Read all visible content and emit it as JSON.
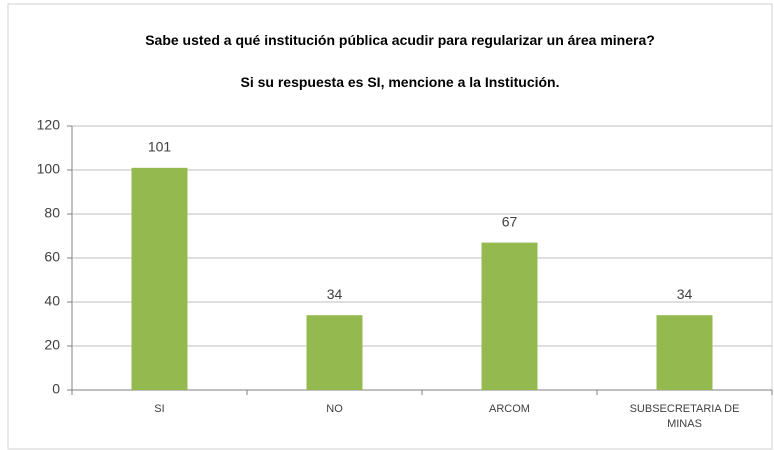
{
  "chart_data": {
    "type": "bar",
    "title": "Sabe usted a qué institución pública acudir para regularizar un área minera?",
    "subtitle": "Si su respuesta es SI, mencione a la Institución.",
    "categories": [
      "SI",
      "NO",
      "ARCOM",
      "SUBSECRETARIA DE MINAS"
    ],
    "values": [
      101,
      34,
      67,
      34
    ],
    "color": "#94b94f",
    "ylim": [
      0,
      120
    ],
    "yticks": [
      0,
      20,
      40,
      60,
      80,
      100,
      120
    ],
    "grid": true
  }
}
